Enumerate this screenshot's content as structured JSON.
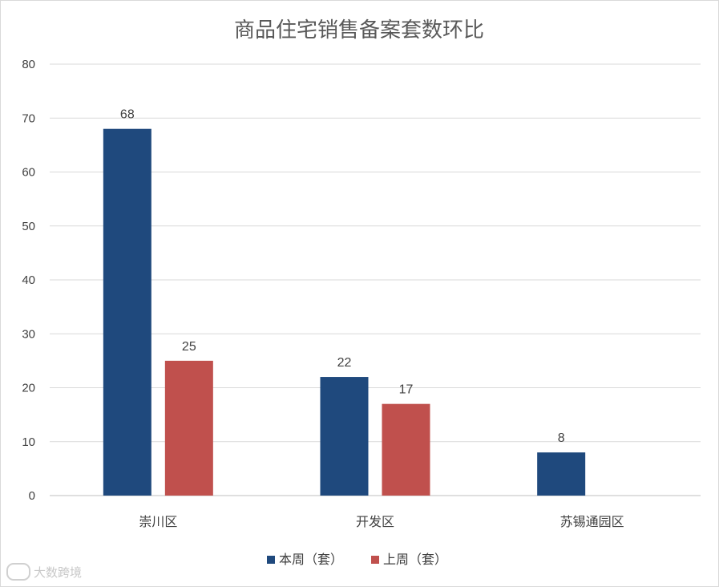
{
  "chart_data": {
    "type": "bar",
    "title": "商品住宅销售备案套数环比",
    "categories": [
      "崇川区",
      "开发区",
      "苏锡通园区"
    ],
    "series": [
      {
        "name": "本周（套）",
        "values": [
          68,
          22,
          8
        ],
        "color": "#1f497d"
      },
      {
        "name": "上周（套）",
        "values": [
          25,
          17,
          null
        ],
        "color": "#c0504d"
      }
    ],
    "ylim": [
      0,
      80
    ],
    "yticks": [
      0,
      10,
      20,
      30,
      40,
      50,
      60,
      70,
      80
    ],
    "grid": true,
    "legend": "bottom"
  },
  "watermark": {
    "text": "大数跨境"
  }
}
